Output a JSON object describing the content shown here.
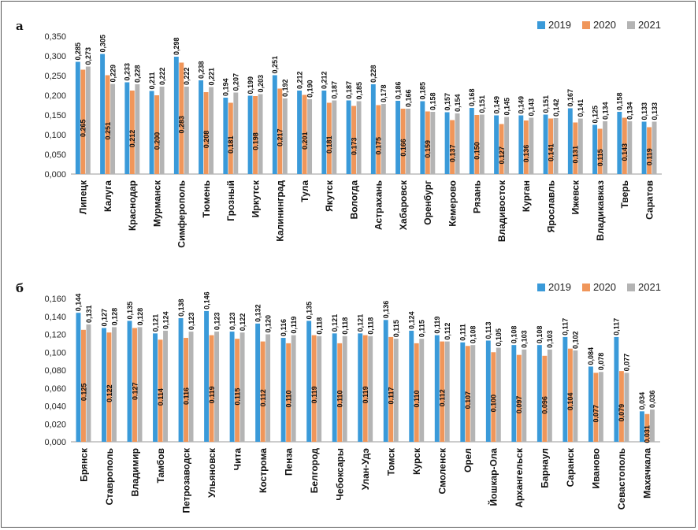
{
  "colors": {
    "s2019": "#3a9ad9",
    "s2020": "#f0965a",
    "s2021": "#b4b4b4"
  },
  "chart_data": [
    {
      "type": "bar",
      "panel_label": "а",
      "ylim": [
        0,
        0.35
      ],
      "yticks": [
        "0,000",
        "0,050",
        "0,100",
        "0,150",
        "0,200",
        "0,250",
        "0,300",
        "0,350"
      ],
      "legend_position": "top-right",
      "categories": [
        "Липецк",
        "Калуга",
        "Краснодар",
        "Мурманск",
        "Симферополь",
        "Тюмень",
        "Грозный",
        "Иркутск",
        "Калининград",
        "Тула",
        "Якутск",
        "Вологда",
        "Астрахань",
        "Хабаровск",
        "Оренбург",
        "Кемерово",
        "Рязань",
        "Владивосток",
        "Курган",
        "Ярославль",
        "Ижевск",
        "Владикавказ",
        "Тверь",
        "Саратов"
      ],
      "series": [
        {
          "name": "2019",
          "values": [
            0.285,
            0.305,
            0.233,
            0.211,
            0.298,
            0.238,
            0.194,
            0.199,
            0.251,
            0.212,
            0.212,
            0.187,
            0.228,
            0.186,
            0.185,
            0.157,
            0.168,
            0.149,
            0.149,
            0.151,
            0.167,
            0.125,
            0.158,
            0.133
          ],
          "labels": [
            "0,285",
            "0,305",
            "0,233",
            "0,211",
            "0,298",
            "0,238",
            "0,194",
            "0,199",
            "0,251",
            "0,212",
            "0,212",
            "0,187",
            "0,228",
            "0,186",
            "0,185",
            "0,157",
            "0,168",
            "0,149",
            "0,149",
            "0,151",
            "0,167",
            "0,125",
            "0,158",
            "0,133"
          ]
        },
        {
          "name": "2020",
          "values": [
            0.265,
            0.251,
            0.212,
            0.2,
            0.283,
            0.208,
            0.181,
            0.198,
            0.217,
            0.201,
            0.181,
            0.173,
            0.175,
            0.166,
            0.159,
            0.137,
            0.15,
            0.127,
            0.136,
            0.141,
            0.131,
            0.115,
            0.143,
            0.119
          ],
          "labels": [
            "0,265",
            "0,251",
            "0,212",
            "0,200",
            "0,283",
            "0,208",
            "0,181",
            "0,198",
            "0,217",
            "0,201",
            "0,181",
            "0,173",
            "0,175",
            "0,166",
            "0,159",
            "0,137",
            "0,150",
            "0,127",
            "0,136",
            "0,141",
            "0,131",
            "0,115",
            "0,143",
            "0,119"
          ]
        },
        {
          "name": "2021",
          "values": [
            0.273,
            0.229,
            0.228,
            0.222,
            0.222,
            0.221,
            0.207,
            0.203,
            0.192,
            0.19,
            0.187,
            0.185,
            0.178,
            0.166,
            0.158,
            0.154,
            0.151,
            0.145,
            0.143,
            0.142,
            0.141,
            0.134,
            0.134,
            0.133
          ],
          "labels": [
            "0,273",
            "0,229",
            "0,228",
            "0,222",
            "0,222",
            "0,221",
            "0,207",
            "0,203",
            "0,192",
            "0,190",
            "0,187",
            "0,185",
            "0,178",
            "0,166",
            "0,158",
            "0,154",
            "0,151",
            "0,145",
            "0,143",
            "0,142",
            "0,141",
            "0,134",
            "0,134",
            "0,133"
          ]
        }
      ]
    },
    {
      "type": "bar",
      "panel_label": "б",
      "ylim": [
        0,
        0.16
      ],
      "yticks": [
        "0,000",
        "0,020",
        "0,040",
        "0,060",
        "0,080",
        "0,100",
        "0,120",
        "0,140",
        "0,160"
      ],
      "legend_position": "top-right",
      "categories": [
        "Брянск",
        "Ставрополь",
        "Владимир",
        "Тамбов",
        "Петрозаводск",
        "Ульяновск",
        "Чита",
        "Кострома",
        "Пенза",
        "Белгород",
        "Чебоксары",
        "Улан-Удэ",
        "Томск",
        "Курск",
        "Смоленск",
        "Орел",
        "Йошкар-Ола",
        "Архангельск",
        "Барнаул",
        "Саранск",
        "Иваново",
        "Севастополь",
        "Махачкала"
      ],
      "series": [
        {
          "name": "2019",
          "values": [
            0.144,
            0.127,
            0.135,
            0.121,
            0.138,
            0.146,
            0.123,
            0.132,
            0.116,
            0.135,
            0.121,
            0.121,
            0.136,
            0.124,
            0.119,
            0.111,
            0.113,
            0.108,
            0.108,
            0.117,
            0.084,
            0.117,
            0.034
          ],
          "labels": [
            "0,144",
            "0,127",
            "0,135",
            "0,121",
            "0,138",
            "0,146",
            "0,123",
            "0,132",
            "0,116",
            "0,135",
            "0,121",
            "0,121",
            "0,136",
            "0,124",
            "0,119",
            "0,111",
            "0,113",
            "0,108",
            "0,108",
            "0,117",
            "0,084",
            "0,117",
            "0,034"
          ]
        },
        {
          "name": "2020",
          "values": [
            0.125,
            0.122,
            0.127,
            0.114,
            0.116,
            0.119,
            0.115,
            0.112,
            0.11,
            0.119,
            0.11,
            0.119,
            0.117,
            0.11,
            0.112,
            0.107,
            0.1,
            0.097,
            0.096,
            0.104,
            0.077,
            0.079,
            0.031
          ],
          "labels": [
            "0,125",
            "0,122",
            "0,127",
            "0,114",
            "0,116",
            "0,119",
            "0,115",
            "0,112",
            "0,110",
            "0,119",
            "0,110",
            "0,119",
            "0,117",
            "0,110",
            "0,112",
            "0,107",
            "0,100",
            "0,097",
            "0,096",
            "0,104",
            "0,077",
            "0,079",
            "0,031"
          ]
        },
        {
          "name": "2021",
          "values": [
            0.131,
            0.128,
            0.128,
            0.124,
            0.123,
            0.123,
            0.122,
            0.12,
            0.119,
            0.118,
            0.118,
            0.118,
            0.115,
            0.115,
            0.112,
            0.108,
            0.105,
            0.103,
            0.103,
            0.102,
            0.078,
            0.077,
            0.036
          ],
          "labels": [
            "0,131",
            "0,128",
            "0,128",
            "0,124",
            "0,123",
            "0,123",
            "0,122",
            "0,120",
            "0,119",
            "0,118",
            "0,118",
            "0,118",
            "0,115",
            "0,115",
            "0,112",
            "0,108",
            "0,105",
            "0,103",
            "0,103",
            "0,102",
            "0,078",
            "0,077",
            "0,036"
          ]
        }
      ]
    }
  ]
}
